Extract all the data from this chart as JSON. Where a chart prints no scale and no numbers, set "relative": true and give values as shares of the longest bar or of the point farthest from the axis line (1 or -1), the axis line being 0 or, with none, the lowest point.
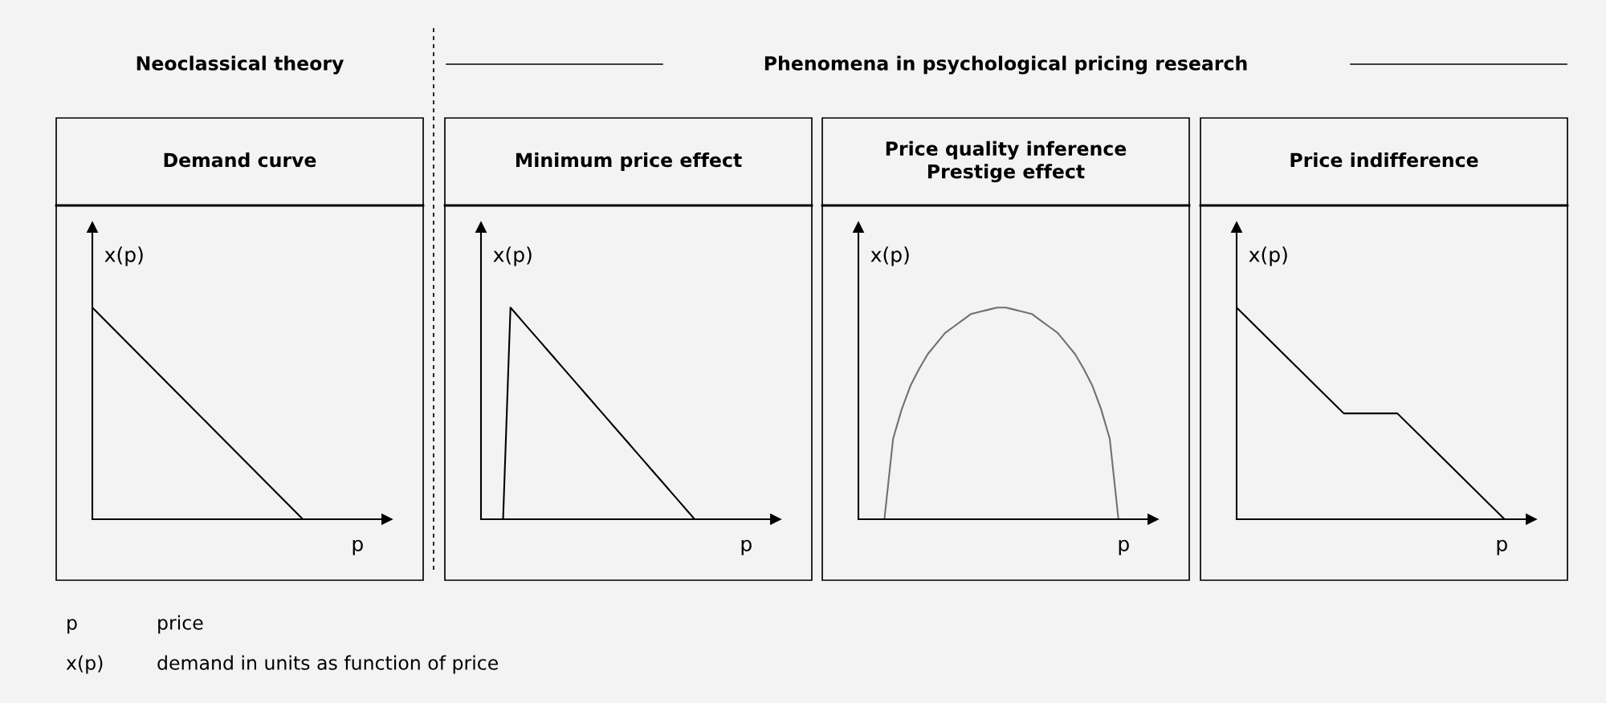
{
  "chart_data": [
    {
      "type": "line",
      "title": "Demand curve",
      "xlabel": "p",
      "ylabel": "x(p)",
      "relative": true,
      "categories": [
        null,
        null,
        null,
        null,
        null,
        null,
        null,
        null
      ],
      "series": [
        {
          "color": "#000000",
          "values": [
            1,
            0.8,
            0.6,
            0.4,
            0.2,
            0,
            null,
            null
          ]
        }
      ],
      "annotations": [
        "Neoclassical theory",
        "p",
        "price",
        "x(p)",
        "demand in units as function of price"
      ]
    },
    {
      "type": "line",
      "title": "Minimum price effect",
      "xlabel": "p",
      "ylabel": "x(p)",
      "relative": true,
      "categories": [
        null,
        null,
        null,
        null,
        null,
        null,
        null,
        null,
        null,
        null,
        null,
        null,
        null,
        null,
        null,
        null,
        null,
        null,
        null,
        null,
        null,
        null,
        null,
        null,
        null,
        null,
        null,
        null,
        null,
        null,
        null,
        null,
        null,
        null,
        null,
        null,
        null,
        null,
        null,
        null,
        null
      ],
      "series": [
        {
          "color": "#000000",
          "values": [
            null,
            null,
            null,
            0,
            1,
            0.96,
            0.92,
            0.88,
            0.84,
            0.8,
            0.76,
            0.72,
            0.68,
            0.64,
            0.6,
            0.56,
            0.52,
            0.48,
            0.44,
            0.4,
            0.36,
            0.32,
            0.28,
            0.24,
            0.2,
            0.16,
            0.12,
            0.08,
            0.04,
            0,
            null,
            null,
            null,
            null,
            null,
            null,
            null,
            null,
            null,
            null,
            null
          ]
        }
      ],
      "annotations": [
        "Phenomena in psychological pricing research"
      ]
    },
    {
      "type": "line",
      "title": "Price quality inference\nPrestige effect",
      "xlabel": "p",
      "ylabel": "x(p)",
      "relative": true,
      "categories": [
        null,
        null,
        null,
        null,
        null,
        null,
        null,
        null,
        null,
        null,
        null,
        null,
        null,
        null,
        null,
        null,
        null,
        null,
        null,
        null,
        null,
        null,
        null,
        null,
        null,
        null,
        null,
        null,
        null,
        null,
        null,
        null,
        null,
        null,
        null
      ],
      "series": [
        {
          "color": "#707070",
          "values": [
            null,
            null,
            null,
            0,
            0.38,
            0.52,
            0.63,
            0.71,
            0.78,
            0.83,
            0.88,
            0.91,
            0.94,
            0.97,
            0.98,
            0.99,
            1,
            1,
            0.99,
            0.98,
            0.97,
            0.94,
            0.91,
            0.88,
            0.83,
            0.78,
            0.71,
            0.63,
            0.52,
            0.38,
            0,
            null,
            null,
            null,
            null
          ]
        }
      ]
    },
    {
      "type": "line",
      "title": "Price indifference",
      "xlabel": "p",
      "ylabel": "x(p)",
      "relative": true,
      "categories": [
        null,
        null,
        null,
        null,
        null,
        null,
        null,
        null,
        null,
        null,
        null,
        null
      ],
      "series": [
        {
          "color": "#000000",
          "values": [
            1,
            0.875,
            0.75,
            0.625,
            0.5,
            0.5,
            0.5,
            0.375,
            0.25,
            0.125,
            0,
            null
          ]
        }
      ]
    }
  ]
}
